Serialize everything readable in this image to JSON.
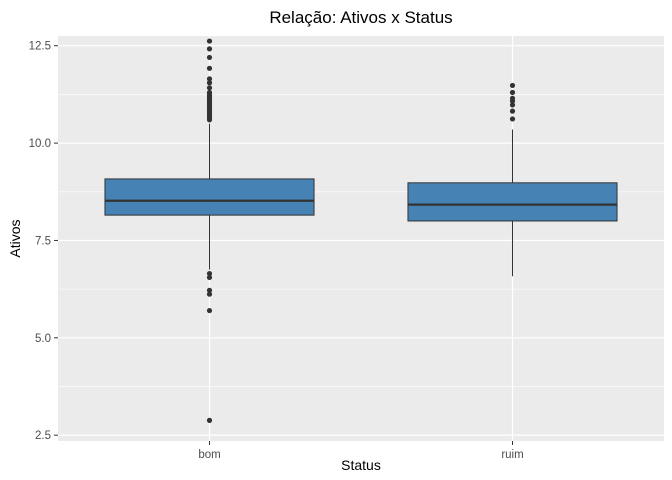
{
  "chart_data": {
    "type": "boxplot",
    "title": "Relação: Ativos x Status",
    "xlabel": "Status",
    "ylabel": "Ativos",
    "ylim": [
      2.35,
      12.75
    ],
    "yticks": [
      2.5,
      5.0,
      7.5,
      10.0,
      12.5
    ],
    "ytick_labels": [
      "2.5",
      "5.0",
      "7.5",
      "10.0",
      "12.5"
    ],
    "categories": [
      "bom",
      "ruim"
    ],
    "grid": true,
    "legend": "none",
    "colors": {
      "panel": "#EBEBEB",
      "grid": "#FFFFFF",
      "box_fill": "#4682B4",
      "box_line": "#333333",
      "outlier": "#333333",
      "tick": "#333333"
    },
    "boxes": [
      {
        "category": "bom",
        "whisker_low": 6.75,
        "q1": 8.15,
        "median": 8.52,
        "q3": 9.08,
        "whisker_high": 10.5,
        "outliers": [
          2.88,
          5.7,
          6.12,
          6.22,
          6.55,
          6.65,
          10.6,
          10.65,
          10.7,
          10.75,
          10.8,
          10.85,
          10.9,
          10.95,
          11.0,
          11.05,
          11.1,
          11.15,
          11.2,
          11.25,
          11.3,
          11.42,
          11.55,
          11.65,
          11.92,
          12.2,
          12.42,
          12.62
        ]
      },
      {
        "category": "ruim",
        "whisker_low": 6.58,
        "q1": 8.0,
        "median": 8.42,
        "q3": 8.98,
        "whisker_high": 10.35,
        "outliers": [
          10.62,
          10.82,
          10.98,
          11.08,
          11.15,
          11.3,
          11.48
        ]
      }
    ]
  }
}
